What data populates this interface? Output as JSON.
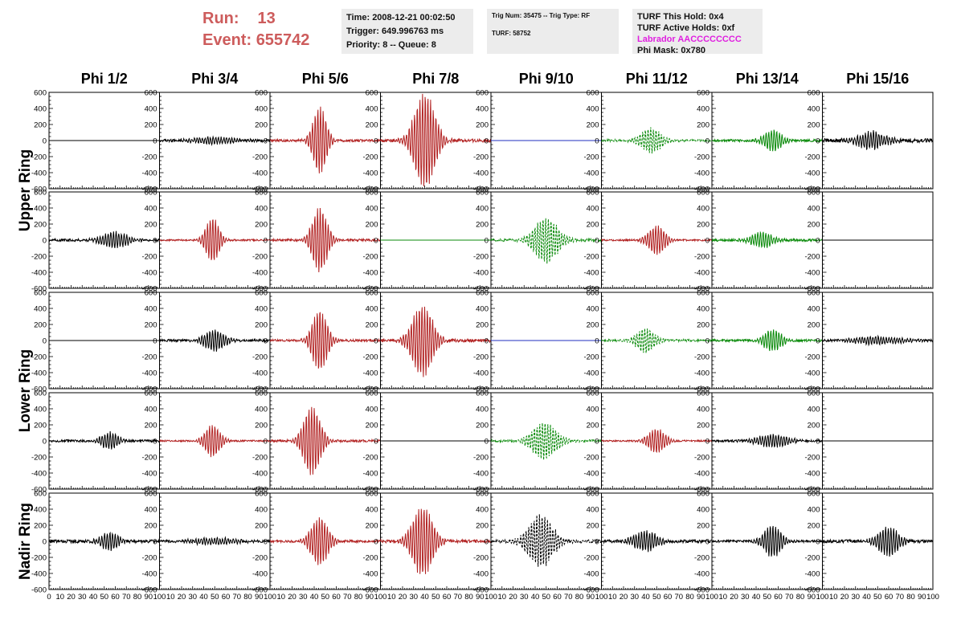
{
  "header": {
    "run_label": "Run:",
    "run_value": "13",
    "event_label": "Event:",
    "event_value": "655742",
    "time": "Time: 2008-12-21 00:02:50",
    "trigger": "Trigger: 649.996763 ms",
    "priority": "Priority: 8 -- Queue: 8",
    "trig_num": "Trig Num: 35475 -- Trig Type: RF",
    "turf": "TURF: 58752",
    "turf_hold": "TURF This Hold: 0x4",
    "turf_active": "TURF Active Holds: 0xf",
    "labrador": "Labrador AACCCCCCCC",
    "phi_mask": "Phi Mask: 0x780"
  },
  "colors": {
    "red": "#b22222",
    "green": "#0a8a0a",
    "blue": "#1f2fbf",
    "black": "#000000",
    "header_red": "#cd5c5c",
    "magenta": "#e020e0"
  },
  "chart_data": {
    "type": "line",
    "columns": [
      "Phi 1/2",
      "Phi 3/4",
      "Phi 5/6",
      "Phi 7/8",
      "Phi 9/10",
      "Phi 11/12",
      "Phi 13/14",
      "Phi 15/16"
    ],
    "rows": [
      "Upper Ring",
      "Lower Ring",
      "Nadir Ring"
    ],
    "ylim": [
      -600,
      600
    ],
    "xlim": [
      0,
      100
    ],
    "yticks": [
      "600",
      "400",
      "200",
      "0",
      "-200",
      "-400",
      "-600"
    ],
    "xticks": [
      "0",
      "10",
      "20",
      "30",
      "40",
      "50",
      "60",
      "70",
      "80",
      "90",
      "100"
    ],
    "panels": [
      [
        {
          "color": "black",
          "amp": 0,
          "center": 50,
          "width": 10,
          "noise": 0,
          "style": "solid"
        },
        {
          "color": "black",
          "amp": 40,
          "center": 50,
          "width": 25,
          "noise": 15,
          "style": "solid"
        },
        {
          "color": "red",
          "amp": 420,
          "center": 45,
          "width": 8,
          "noise": 15,
          "style": "solid"
        },
        {
          "color": "red",
          "amp": 600,
          "center": 40,
          "width": 12,
          "noise": 20,
          "style": "solid"
        },
        {
          "color": "blue",
          "amp": 0,
          "center": 50,
          "width": 10,
          "noise": 0,
          "style": "solid"
        },
        {
          "color": "green",
          "amp": 150,
          "center": 45,
          "width": 12,
          "noise": 15,
          "style": "dashed"
        },
        {
          "color": "green",
          "amp": 140,
          "center": 55,
          "width": 10,
          "noise": 15,
          "style": "solid"
        },
        {
          "color": "black",
          "amp": 110,
          "center": 45,
          "width": 15,
          "noise": 25,
          "style": "solid"
        }
      ],
      [
        {
          "color": "black",
          "amp": 100,
          "center": 60,
          "width": 15,
          "noise": 15,
          "style": "solid"
        },
        {
          "color": "red",
          "amp": 280,
          "center": 48,
          "width": 8,
          "noise": 10,
          "style": "solid"
        },
        {
          "color": "red",
          "amp": 400,
          "center": 45,
          "width": 9,
          "noise": 15,
          "style": "solid"
        },
        {
          "color": "green",
          "amp": 0,
          "center": 50,
          "width": 10,
          "noise": 0,
          "style": "solid"
        },
        {
          "color": "green",
          "amp": 280,
          "center": 50,
          "width": 14,
          "noise": 15,
          "style": "dashed"
        },
        {
          "color": "red",
          "amp": 180,
          "center": 50,
          "width": 10,
          "noise": 10,
          "style": "solid"
        },
        {
          "color": "green",
          "amp": 100,
          "center": 45,
          "width": 12,
          "noise": 15,
          "style": "solid"
        },
        {
          "color": "black",
          "amp": 0,
          "center": 50,
          "width": 10,
          "noise": 0,
          "style": "solid"
        }
      ],
      [
        {
          "color": "black",
          "amp": 0,
          "center": 50,
          "width": 10,
          "noise": 0,
          "style": "solid"
        },
        {
          "color": "black",
          "amp": 130,
          "center": 50,
          "width": 12,
          "noise": 15,
          "style": "solid"
        },
        {
          "color": "red",
          "amp": 380,
          "center": 45,
          "width": 9,
          "noise": 15,
          "style": "solid"
        },
        {
          "color": "red",
          "amp": 450,
          "center": 38,
          "width": 12,
          "noise": 20,
          "style": "solid"
        },
        {
          "color": "blue",
          "amp": 0,
          "center": 50,
          "width": 10,
          "noise": 0,
          "style": "solid"
        },
        {
          "color": "green",
          "amp": 160,
          "center": 40,
          "width": 10,
          "noise": 15,
          "style": "dashed"
        },
        {
          "color": "green",
          "amp": 140,
          "center": 55,
          "width": 10,
          "noise": 15,
          "style": "solid"
        },
        {
          "color": "black",
          "amp": 50,
          "center": 50,
          "width": 25,
          "noise": 15,
          "style": "solid"
        }
      ],
      [
        {
          "color": "black",
          "amp": 110,
          "center": 55,
          "width": 10,
          "noise": 15,
          "style": "solid"
        },
        {
          "color": "red",
          "amp": 200,
          "center": 48,
          "width": 9,
          "noise": 10,
          "style": "solid"
        },
        {
          "color": "red",
          "amp": 430,
          "center": 38,
          "width": 10,
          "noise": 15,
          "style": "solid"
        },
        {
          "color": "black",
          "amp": 0,
          "center": 50,
          "width": 10,
          "noise": 0,
          "style": "solid"
        },
        {
          "color": "green",
          "amp": 230,
          "center": 48,
          "width": 14,
          "noise": 15,
          "style": "dashed"
        },
        {
          "color": "red",
          "amp": 150,
          "center": 50,
          "width": 10,
          "noise": 10,
          "style": "solid"
        },
        {
          "color": "black",
          "amp": 80,
          "center": 55,
          "width": 18,
          "noise": 15,
          "style": "solid"
        },
        {
          "color": "black",
          "amp": 0,
          "center": 50,
          "width": 10,
          "noise": 0,
          "style": "solid"
        }
      ],
      [
        {
          "color": "black",
          "amp": 120,
          "center": 55,
          "width": 10,
          "noise": 20,
          "style": "solid"
        },
        {
          "color": "black",
          "amp": 40,
          "center": 50,
          "width": 25,
          "noise": 15,
          "style": "solid"
        },
        {
          "color": "red",
          "amp": 300,
          "center": 45,
          "width": 10,
          "noise": 15,
          "style": "solid"
        },
        {
          "color": "red",
          "amp": 440,
          "center": 38,
          "width": 12,
          "noise": 20,
          "style": "solid"
        },
        {
          "color": "black",
          "amp": 330,
          "center": 45,
          "width": 14,
          "noise": 20,
          "style": "dashed"
        },
        {
          "color": "black",
          "amp": 120,
          "center": 40,
          "width": 14,
          "noise": 20,
          "style": "solid"
        },
        {
          "color": "black",
          "amp": 200,
          "center": 55,
          "width": 10,
          "noise": 15,
          "style": "solid"
        },
        {
          "color": "black",
          "amp": 180,
          "center": 60,
          "width": 12,
          "noise": 20,
          "style": "solid"
        }
      ]
    ]
  }
}
